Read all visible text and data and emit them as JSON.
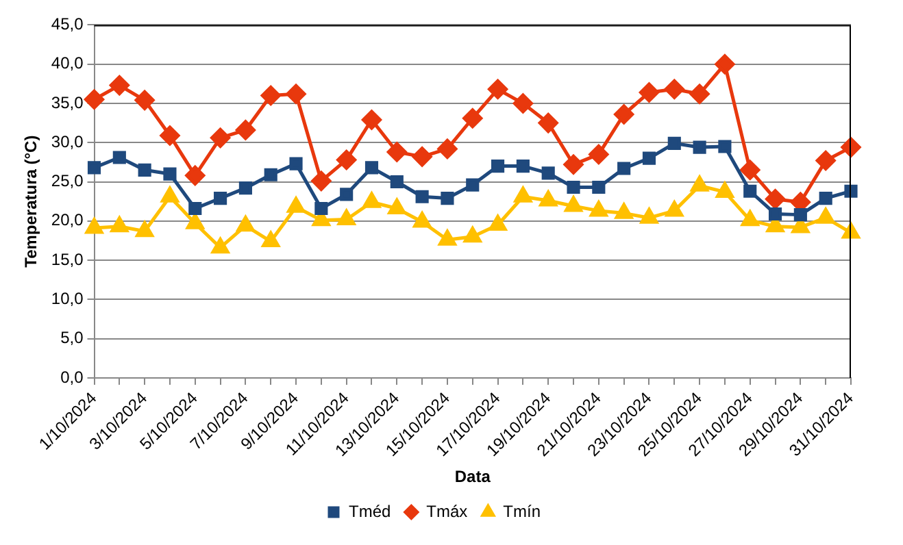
{
  "chart_data": {
    "type": "line",
    "xlabel": "Data",
    "ylabel": "Temperatura (°C)",
    "categories": [
      "1/10/2024",
      null,
      "3/10/2024",
      null,
      "5/10/2024",
      null,
      "7/10/2024",
      null,
      "9/10/2024",
      null,
      "11/10/2024",
      null,
      "13/10/2024",
      null,
      "15/10/2024",
      null,
      "17/10/2024",
      null,
      "19/10/2024",
      null,
      "21/10/2024",
      null,
      "23/10/2024",
      null,
      "25/10/2024",
      null,
      "27/10/2024",
      null,
      "29/10/2024",
      null,
      "31/10/2024"
    ],
    "series": [
      {
        "name": "Tméd",
        "color": "#1f497d",
        "marker": "square",
        "values": [
          26.8,
          28.1,
          26.5,
          26.0,
          21.6,
          22.9,
          24.2,
          25.9,
          27.3,
          21.6,
          23.4,
          26.8,
          25.0,
          23.1,
          22.9,
          24.6,
          27.0,
          27.0,
          26.1,
          24.3,
          24.3,
          26.7,
          28.0,
          29.9,
          29.4,
          29.5,
          23.8,
          20.9,
          20.8,
          22.9,
          23.8
        ]
      },
      {
        "name": "Tmáx",
        "color": "#e8380d",
        "marker": "diamond",
        "values": [
          35.5,
          37.3,
          35.4,
          30.9,
          25.8,
          30.6,
          31.6,
          36.0,
          36.2,
          25.1,
          27.8,
          32.9,
          28.8,
          28.2,
          29.2,
          33.1,
          36.8,
          35.0,
          32.5,
          27.2,
          28.5,
          33.6,
          36.4,
          36.8,
          36.2,
          40.0,
          26.5,
          22.8,
          22.4,
          27.7,
          29.4
        ]
      },
      {
        "name": "Tmín",
        "color": "#ffc000",
        "marker": "triangle",
        "values": [
          19.1,
          19.3,
          18.7,
          23.1,
          19.7,
          16.6,
          19.4,
          17.4,
          21.8,
          20.1,
          20.2,
          22.4,
          21.6,
          19.9,
          17.6,
          18.0,
          19.5,
          23.1,
          22.6,
          21.9,
          21.3,
          21.0,
          20.4,
          21.3,
          24.5,
          23.7,
          20.1,
          19.3,
          19.2,
          20.4,
          18.5
        ]
      }
    ],
    "ylim": [
      0,
      45
    ],
    "yticks": [
      {
        "value": 0,
        "label": "0,0"
      },
      {
        "value": 5,
        "label": "5,0"
      },
      {
        "value": 10,
        "label": "10,0"
      },
      {
        "value": 15,
        "label": "15,0"
      },
      {
        "value": 20,
        "label": "20,0"
      },
      {
        "value": 25,
        "label": "25,0"
      },
      {
        "value": 30,
        "label": "30,0"
      },
      {
        "value": 35,
        "label": "35,0"
      },
      {
        "value": 40,
        "label": "40,0"
      },
      {
        "value": 45,
        "label": "45,0"
      }
    ],
    "grid": "y",
    "legend": "bottom",
    "line_style": "solid"
  }
}
